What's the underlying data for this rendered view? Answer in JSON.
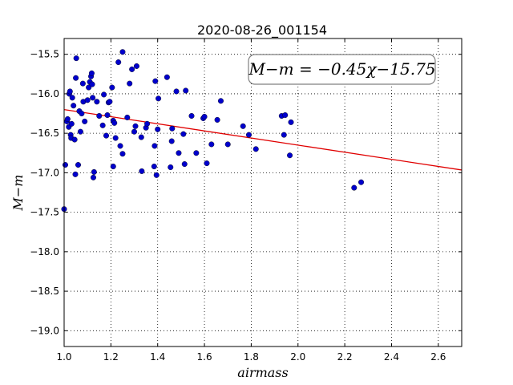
{
  "chart_data": {
    "type": "scatter",
    "title": "2020-08-26_001154",
    "xlabel": "airmass",
    "ylabel": "M−m",
    "xlim": [
      1.0,
      2.7
    ],
    "ylim": [
      -19.2,
      -15.3
    ],
    "y_inverted": true,
    "grid": true,
    "x_ticks": [
      "1.0",
      "1.2",
      "1.4",
      "1.6",
      "1.8",
      "2.0",
      "2.2",
      "2.4",
      "2.6"
    ],
    "y_ticks": [
      "−15.5",
      "−16.0",
      "−16.5",
      "−17.0",
      "−17.5",
      "−18.0",
      "−18.5",
      "−19.0"
    ],
    "annotation": "M−m = −0.45χ−15.75",
    "annotation_position": "top-right",
    "fit_line": {
      "slope": -0.45,
      "intercept": -15.75,
      "color": "#e00000"
    },
    "marker_color": "#0000cc",
    "points": [
      [
        1.0,
        -17.46
      ],
      [
        1.005,
        -16.9
      ],
      [
        1.012,
        -16.35
      ],
      [
        1.015,
        -16.32
      ],
      [
        1.02,
        -16.42
      ],
      [
        1.022,
        -16.0
      ],
      [
        1.025,
        -15.97
      ],
      [
        1.028,
        -16.52
      ],
      [
        1.03,
        -16.56
      ],
      [
        1.032,
        -16.38
      ],
      [
        1.035,
        -16.05
      ],
      [
        1.04,
        -16.15
      ],
      [
        1.045,
        -16.58
      ],
      [
        1.048,
        -17.02
      ],
      [
        1.05,
        -15.8
      ],
      [
        1.052,
        -15.55
      ],
      [
        1.06,
        -16.9
      ],
      [
        1.065,
        -16.22
      ],
      [
        1.07,
        -16.48
      ],
      [
        1.075,
        -16.25
      ],
      [
        1.08,
        -15.87
      ],
      [
        1.082,
        -16.1
      ],
      [
        1.088,
        -16.35
      ],
      [
        1.1,
        -16.08
      ],
      [
        1.105,
        -15.92
      ],
      [
        1.11,
        -15.85
      ],
      [
        1.115,
        -15.78
      ],
      [
        1.118,
        -15.74
      ],
      [
        1.12,
        -15.88
      ],
      [
        1.122,
        -16.05
      ],
      [
        1.125,
        -17.06
      ],
      [
        1.128,
        -16.99
      ],
      [
        1.14,
        -16.1
      ],
      [
        1.15,
        -16.28
      ],
      [
        1.165,
        -16.4
      ],
      [
        1.17,
        -16.01
      ],
      [
        1.18,
        -16.53
      ],
      [
        1.185,
        -16.27
      ],
      [
        1.19,
        -16.11
      ],
      [
        1.195,
        -16.1
      ],
      [
        1.205,
        -15.92
      ],
      [
        1.21,
        -16.34
      ],
      [
        1.21,
        -16.92
      ],
      [
        1.215,
        -16.37
      ],
      [
        1.22,
        -16.56
      ],
      [
        1.232,
        -15.6
      ],
      [
        1.24,
        -16.66
      ],
      [
        1.25,
        -16.76
      ],
      [
        1.25,
        -15.47
      ],
      [
        1.27,
        -16.3
      ],
      [
        1.28,
        -15.87
      ],
      [
        1.29,
        -15.69
      ],
      [
        1.3,
        -16.48
      ],
      [
        1.305,
        -16.41
      ],
      [
        1.31,
        -15.65
      ],
      [
        1.33,
        -16.55
      ],
      [
        1.332,
        -16.98
      ],
      [
        1.35,
        -16.43
      ],
      [
        1.355,
        -16.38
      ],
      [
        1.385,
        -16.92
      ],
      [
        1.387,
        -16.66
      ],
      [
        1.39,
        -15.84
      ],
      [
        1.395,
        -17.03
      ],
      [
        1.4,
        -16.45
      ],
      [
        1.403,
        -16.06
      ],
      [
        1.44,
        -15.79
      ],
      [
        1.455,
        -16.93
      ],
      [
        1.46,
        -16.6
      ],
      [
        1.462,
        -16.44
      ],
      [
        1.48,
        -15.97
      ],
      [
        1.49,
        -16.75
      ],
      [
        1.51,
        -16.51
      ],
      [
        1.515,
        -16.89
      ],
      [
        1.52,
        -15.96
      ],
      [
        1.545,
        -16.28
      ],
      [
        1.565,
        -16.75
      ],
      [
        1.595,
        -16.31
      ],
      [
        1.6,
        -16.29
      ],
      [
        1.61,
        -16.88
      ],
      [
        1.63,
        -16.64
      ],
      [
        1.655,
        -16.33
      ],
      [
        1.67,
        -16.09
      ],
      [
        1.7,
        -16.64
      ],
      [
        1.765,
        -16.41
      ],
      [
        1.79,
        -16.52
      ],
      [
        1.82,
        -16.7
      ],
      [
        1.93,
        -16.28
      ],
      [
        1.94,
        -16.52
      ],
      [
        1.945,
        -16.27
      ],
      [
        1.965,
        -16.78
      ],
      [
        1.97,
        -16.36
      ],
      [
        2.24,
        -17.19
      ],
      [
        2.27,
        -17.12
      ]
    ]
  }
}
